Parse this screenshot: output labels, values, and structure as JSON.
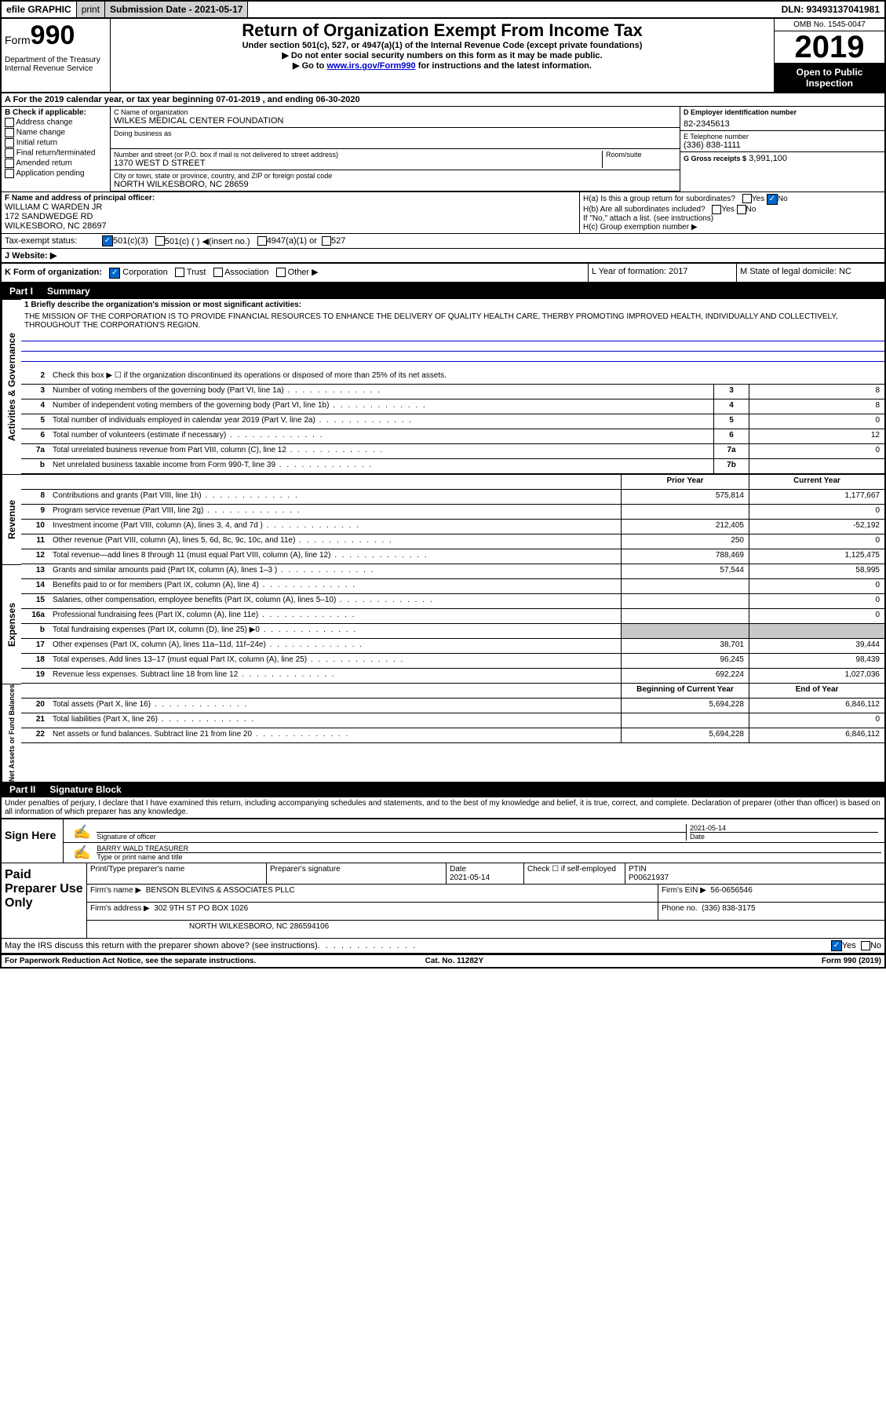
{
  "topbar": {
    "efile": "efile GRAPHIC",
    "print": "print",
    "subdate_label": "Submission Date - 2021-05-17",
    "dln": "DLN: 93493137041981"
  },
  "header": {
    "form_word": "Form",
    "form_num": "990",
    "dept": "Department of the Treasury Internal Revenue Service",
    "title": "Return of Organization Exempt From Income Tax",
    "subtitle": "Under section 501(c), 527, or 4947(a)(1) of the Internal Revenue Code (except private foundations)",
    "instr1": "▶ Do not enter social security numbers on this form as it may be made public.",
    "instr2_pre": "▶ Go to ",
    "instr2_link": "www.irs.gov/Form990",
    "instr2_post": " for instructions and the latest information.",
    "omb": "OMB No. 1545-0047",
    "year": "2019",
    "open": "Open to Public Inspection"
  },
  "rowA": "A For the 2019 calendar year, or tax year beginning 07-01-2019   , and ending 06-30-2020",
  "checkB": {
    "title": "B Check if applicable:",
    "items": [
      "Address change",
      "Name change",
      "Initial return",
      "Final return/terminated",
      "Amended return",
      "Application pending"
    ]
  },
  "orgname_label": "C Name of organization",
  "orgname": "WILKES MEDICAL CENTER FOUNDATION",
  "dba_label": "Doing business as",
  "street_label": "Number and street (or P.O. box if mail is not delivered to street address)",
  "room_label": "Room/suite",
  "street": "1370 WEST D STREET",
  "city_label": "City or town, state or province, country, and ZIP or foreign postal code",
  "city": "NORTH WILKESBORO, NC  28659",
  "ein_label": "D Employer identification number",
  "ein": "82-2345613",
  "phone_label": "E Telephone number",
  "phone": "(336) 838-1111",
  "gross_label": "G Gross receipts $",
  "gross": "3,991,100",
  "f_label": "F Name and address of principal officer:",
  "f_name": "WILLIAM C WARDEN JR",
  "f_addr1": "172 SANDWEDGE RD",
  "f_addr2": "WILKESBORO, NC  28697",
  "ha": "H(a)  Is this a group return for subordinates?",
  "hb": "H(b)  Are all subordinates included?",
  "hb_note": "If \"No,\" attach a list. (see instructions)",
  "hc": "H(c)  Group exemption number ▶",
  "yes": "Yes",
  "no": "No",
  "tax_exempt": "Tax-exempt status:",
  "s501c3": "501(c)(3)",
  "s501c": "501(c) (  ) ◀(insert no.)",
  "s4947": "4947(a)(1) or",
  "s527": "527",
  "website_label": "J   Website: ▶",
  "k_label": "K Form of organization:",
  "k_corp": "Corporation",
  "k_trust": "Trust",
  "k_assoc": "Association",
  "k_other": "Other ▶",
  "l_label": "L Year of formation: 2017",
  "m_label": "M State of legal domicile: NC",
  "part1": "Part I",
  "part1_title": "Summary",
  "part2": "Part II",
  "part2_title": "Signature Block",
  "mission_label": "1  Briefly describe the organization's mission or most significant activities:",
  "mission": "THE MISSION OF THE CORPORATION IS TO PROVIDE FINANCIAL RESOURCES TO ENHANCE THE DELIVERY OF QUALITY HEALTH CARE, THERBY PROMOTING IMPROVED HEALTH, INDIVIDUALLY AND COLLECTIVELY, THROUGHOUT THE CORPORATION'S REGION.",
  "line2": "Check this box ▶ ☐  if the organization discontinued its operations or disposed of more than 25% of its net assets.",
  "governance_lines": [
    {
      "n": "3",
      "text": "Number of voting members of the governing body (Part VI, line 1a)",
      "box": "3",
      "val": "8"
    },
    {
      "n": "4",
      "text": "Number of independent voting members of the governing body (Part VI, line 1b)",
      "box": "4",
      "val": "8"
    },
    {
      "n": "5",
      "text": "Total number of individuals employed in calendar year 2019 (Part V, line 2a)",
      "box": "5",
      "val": "0"
    },
    {
      "n": "6",
      "text": "Total number of volunteers (estimate if necessary)",
      "box": "6",
      "val": "12"
    },
    {
      "n": "7a",
      "text": "Total unrelated business revenue from Part VIII, column (C), line 12",
      "box": "7a",
      "val": "0"
    },
    {
      "n": "b",
      "text": "Net unrelated business taxable income from Form 990-T, line 39",
      "box": "7b",
      "val": ""
    }
  ],
  "prior_label": "Prior Year",
  "current_label": "Current Year",
  "revenue_lines": [
    {
      "n": "8",
      "text": "Contributions and grants (Part VIII, line 1h)",
      "prior": "575,814",
      "current": "1,177,667"
    },
    {
      "n": "9",
      "text": "Program service revenue (Part VIII, line 2g)",
      "prior": "",
      "current": "0"
    },
    {
      "n": "10",
      "text": "Investment income (Part VIII, column (A), lines 3, 4, and 7d )",
      "prior": "212,405",
      "current": "-52,192"
    },
    {
      "n": "11",
      "text": "Other revenue (Part VIII, column (A), lines 5, 6d, 8c, 9c, 10c, and 11e)",
      "prior": "250",
      "current": "0"
    },
    {
      "n": "12",
      "text": "Total revenue—add lines 8 through 11 (must equal Part VIII, column (A), line 12)",
      "prior": "788,469",
      "current": "1,125,475"
    }
  ],
  "expense_lines": [
    {
      "n": "13",
      "text": "Grants and similar amounts paid (Part IX, column (A), lines 1–3 )",
      "prior": "57,544",
      "current": "58,995"
    },
    {
      "n": "14",
      "text": "Benefits paid to or for members (Part IX, column (A), line 4)",
      "prior": "",
      "current": "0"
    },
    {
      "n": "15",
      "text": "Salaries, other compensation, employee benefits (Part IX, column (A), lines 5–10)",
      "prior": "",
      "current": "0"
    },
    {
      "n": "16a",
      "text": "Professional fundraising fees (Part IX, column (A), line 11e)",
      "prior": "",
      "current": "0"
    },
    {
      "n": "b",
      "text": "Total fundraising expenses (Part IX, column (D), line 25) ▶0",
      "prior": "grey",
      "current": "grey"
    },
    {
      "n": "17",
      "text": "Other expenses (Part IX, column (A), lines 11a–11d, 11f–24e)",
      "prior": "38,701",
      "current": "39,444"
    },
    {
      "n": "18",
      "text": "Total expenses. Add lines 13–17 (must equal Part IX, column (A), line 25)",
      "prior": "96,245",
      "current": "98,439"
    },
    {
      "n": "19",
      "text": "Revenue less expenses. Subtract line 18 from line 12",
      "prior": "692,224",
      "current": "1,027,036"
    }
  ],
  "bcy_label": "Beginning of Current Year",
  "eoy_label": "End of Year",
  "net_lines": [
    {
      "n": "20",
      "text": "Total assets (Part X, line 16)",
      "prior": "5,694,228",
      "current": "6,846,112"
    },
    {
      "n": "21",
      "text": "Total liabilities (Part X, line 26)",
      "prior": "",
      "current": "0"
    },
    {
      "n": "22",
      "text": "Net assets or fund balances. Subtract line 21 from line 20",
      "prior": "5,694,228",
      "current": "6,846,112"
    }
  ],
  "side_gov": "Activities & Governance",
  "side_rev": "Revenue",
  "side_exp": "Expenses",
  "side_net": "Net Assets or Fund Balances",
  "penalties": "Under penalties of perjury, I declare that I have examined this return, including accompanying schedules and statements, and to the best of my knowledge and belief, it is true, correct, and complete. Declaration of preparer (other than officer) is based on all information of which preparer has any knowledge.",
  "sign_here": "Sign Here",
  "sig_officer": "Signature of officer",
  "sig_date": "Date",
  "sig_date_val": "2021-05-14",
  "sig_name": "BARRY WALD  TREASURER",
  "sig_name_label": "Type or print name and title",
  "paid_prep": "Paid Preparer Use Only",
  "prep_name_label": "Print/Type preparer's name",
  "prep_sig_label": "Preparer's signature",
  "prep_date_label": "Date",
  "prep_date": "2021-05-14",
  "prep_check": "Check ☐ if self-employed",
  "ptin_label": "PTIN",
  "ptin": "P00621937",
  "firm_name_label": "Firm's name    ▶",
  "firm_name": "BENSON BLEVINS & ASSOCIATES PLLC",
  "firm_ein_label": "Firm's EIN ▶",
  "firm_ein": "56-0656546",
  "firm_addr_label": "Firm's address ▶",
  "firm_addr1": "302 9TH ST PO BOX 1026",
  "firm_addr2": "NORTH WILKESBORO, NC  286594106",
  "firm_phone_label": "Phone no.",
  "firm_phone": "(336) 838-3175",
  "discuss": "May the IRS discuss this return with the preparer shown above? (see instructions)",
  "footer_left": "For Paperwork Reduction Act Notice, see the separate instructions.",
  "footer_mid": "Cat. No. 11282Y",
  "footer_right": "Form 990 (2019)"
}
